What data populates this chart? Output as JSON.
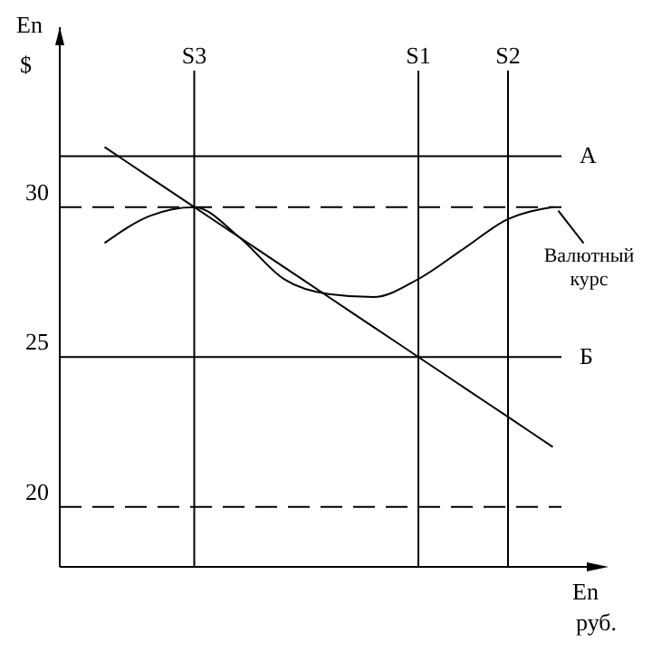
{
  "chart_data": {
    "type": "line",
    "ylabel": "En $",
    "xlabel": "En руб.",
    "categories": [
      null,
      null,
      null,
      "S3",
      null,
      null,
      null,
      null,
      "S1",
      null,
      "S2",
      null,
      null
    ],
    "series": [
      {
        "name": "Валютный курс",
        "color": "#000000",
        "values": [
          null,
          28.8,
          29.7,
          30.0,
          29.0,
          27.6,
          27.1,
          27.0,
          27.6,
          28.6,
          29.6,
          30.0,
          null
        ]
      },
      {
        "color": "#000000",
        "values": [
          null,
          32,
          31,
          30,
          29,
          28,
          27,
          26,
          25,
          24,
          23,
          22,
          null
        ]
      }
    ],
    "ylim": [
      18,
      36
    ],
    "yticks": [
      20,
      25,
      30
    ],
    "grid": false,
    "legend": "right",
    "marker": "none",
    "line_style": "solid",
    "ref_lines": [
      {
        "axis": "y",
        "value": 31.7,
        "label": "А",
        "line_style": "solid"
      },
      {
        "axis": "y",
        "value": 30,
        "line_style": "dashed"
      },
      {
        "axis": "y",
        "value": 25,
        "label": "Б",
        "line_style": "solid"
      },
      {
        "axis": "y",
        "value": 20,
        "line_style": "dashed"
      },
      {
        "axis": "x",
        "value": "S3",
        "line_style": "solid"
      },
      {
        "axis": "x",
        "value": "S1",
        "line_style": "solid"
      },
      {
        "axis": "x",
        "value": "S2",
        "line_style": "solid"
      }
    ]
  }
}
